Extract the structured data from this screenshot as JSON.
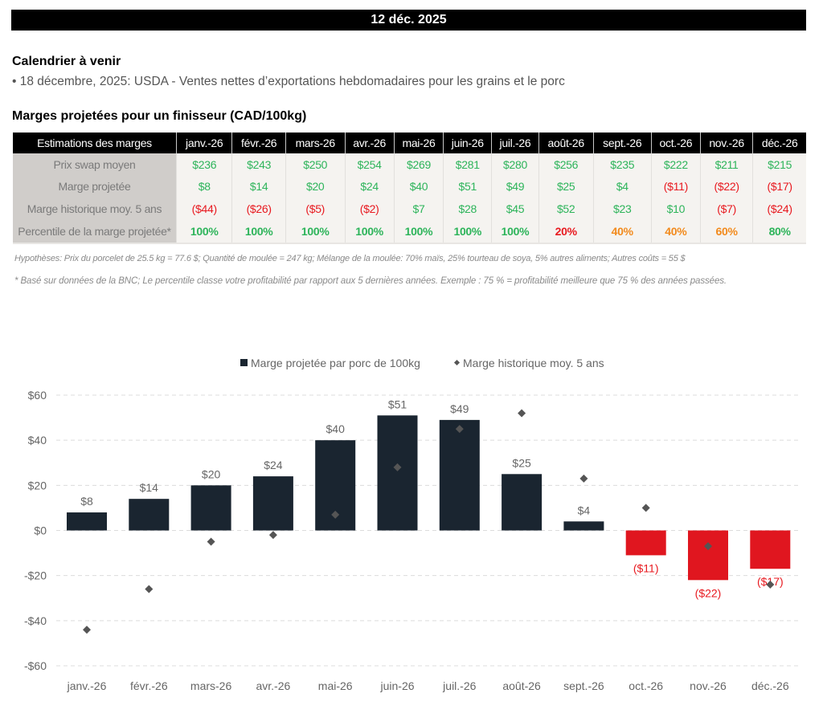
{
  "header": {
    "date": "12 déc. 2025"
  },
  "calendar": {
    "title": "Calendrier à venir",
    "items": [
      "• 18 décembre, 2025: USDA - Ventes nettes d’exportations hebdomadaires pour les grains et le porc"
    ]
  },
  "table": {
    "title": "Marges projetées pour un finisseur (CAD/100kg)",
    "corner_header": "Estimations des marges",
    "columns": [
      "janv.-26",
      "févr.-26",
      "mars-26",
      "avr.-26",
      "mai-26",
      "juin-26",
      "juil.-26",
      "août-26",
      "sept.-26",
      "oct.-26",
      "nov.-26",
      "déc.-26"
    ],
    "rows": [
      {
        "label": "Prix swap moyen",
        "cells": [
          {
            "text": "$236",
            "tone": "green"
          },
          {
            "text": "$243",
            "tone": "green"
          },
          {
            "text": "$250",
            "tone": "green"
          },
          {
            "text": "$254",
            "tone": "green"
          },
          {
            "text": "$269",
            "tone": "green"
          },
          {
            "text": "$281",
            "tone": "green"
          },
          {
            "text": "$280",
            "tone": "green"
          },
          {
            "text": "$256",
            "tone": "green"
          },
          {
            "text": "$235",
            "tone": "green"
          },
          {
            "text": "$222",
            "tone": "green"
          },
          {
            "text": "$211",
            "tone": "green"
          },
          {
            "text": "$215",
            "tone": "green"
          }
        ]
      },
      {
        "label": "Marge projetée",
        "cells": [
          {
            "text": "$8",
            "tone": "green"
          },
          {
            "text": "$14",
            "tone": "green"
          },
          {
            "text": "$20",
            "tone": "green"
          },
          {
            "text": "$24",
            "tone": "green"
          },
          {
            "text": "$40",
            "tone": "green"
          },
          {
            "text": "$51",
            "tone": "green"
          },
          {
            "text": "$49",
            "tone": "green"
          },
          {
            "text": "$25",
            "tone": "green"
          },
          {
            "text": "$4",
            "tone": "green"
          },
          {
            "text": "($11)",
            "tone": "red"
          },
          {
            "text": "($22)",
            "tone": "red"
          },
          {
            "text": "($17)",
            "tone": "red"
          }
        ]
      },
      {
        "label": "Marge historique moy. 5 ans",
        "cells": [
          {
            "text": "($44)",
            "tone": "red"
          },
          {
            "text": "($26)",
            "tone": "red"
          },
          {
            "text": "($5)",
            "tone": "red"
          },
          {
            "text": "($2)",
            "tone": "red"
          },
          {
            "text": "$7",
            "tone": "green"
          },
          {
            "text": "$28",
            "tone": "green"
          },
          {
            "text": "$45",
            "tone": "green"
          },
          {
            "text": "$52",
            "tone": "green"
          },
          {
            "text": "$23",
            "tone": "green"
          },
          {
            "text": "$10",
            "tone": "green"
          },
          {
            "text": "($7)",
            "tone": "red"
          },
          {
            "text": "($24)",
            "tone": "red"
          }
        ]
      },
      {
        "label": "Percentile de la marge projetée*",
        "cells": [
          {
            "text": "100%",
            "tone": "green"
          },
          {
            "text": "100%",
            "tone": "green"
          },
          {
            "text": "100%",
            "tone": "green"
          },
          {
            "text": "100%",
            "tone": "green"
          },
          {
            "text": "100%",
            "tone": "green"
          },
          {
            "text": "100%",
            "tone": "green"
          },
          {
            "text": "100%",
            "tone": "green"
          },
          {
            "text": "20%",
            "tone": "red"
          },
          {
            "text": "40%",
            "tone": "orange"
          },
          {
            "text": "40%",
            "tone": "orange"
          },
          {
            "text": "60%",
            "tone": "orange"
          },
          {
            "text": "80%",
            "tone": "green"
          }
        ]
      }
    ]
  },
  "notes": {
    "assumptions": "Hypothèses: Prix du porcelet de 25.5 kg = 77.6 $; Quantité de moulée = 247 kg; Mélange de la moulée: 70% maïs, 25% tourteau de soya, 5% autres aliments; Autres coûts = 55 $",
    "footnote": "* Basé sur données de la BNC; Le percentile classe votre profitabilité par rapport aux 5 dernières années. Exemple : 75 % = profitabilité meilleure que 75 % des années passées."
  },
  "colors": {
    "green": "#2db45a",
    "red": "#e8191f",
    "orange": "#f28a1c",
    "bar_positive": "#1a2530",
    "bar_negative": "#e0161f",
    "marker": "#555555"
  },
  "chart_data": {
    "type": "bar",
    "title": "",
    "xlabel": "",
    "ylabel": "",
    "categories": [
      "janv.-26",
      "févr.-26",
      "mars-26",
      "avr.-26",
      "mai-26",
      "juin-26",
      "juil.-26",
      "août-26",
      "sept.-26",
      "oct.-26",
      "nov.-26",
      "déc.-26"
    ],
    "series": [
      {
        "name": "Marge projetée par porc de 100kg",
        "kind": "bar",
        "values": [
          8,
          14,
          20,
          24,
          40,
          51,
          49,
          25,
          4,
          -11,
          -22,
          -17
        ],
        "labels": [
          "$8",
          "$14",
          "$20",
          "$24",
          "$40",
          "$51",
          "$49",
          "$25",
          "$4",
          "($11)",
          "($22)",
          "($17)"
        ]
      },
      {
        "name": "Marge historique moy. 5 ans",
        "kind": "marker-diamond",
        "values": [
          -44,
          -26,
          -5,
          -2,
          7,
          28,
          45,
          52,
          23,
          10,
          -7,
          -24
        ]
      }
    ],
    "ylim": [
      -60,
      60
    ],
    "yticks": [
      60,
      40,
      20,
      0,
      -20,
      -40,
      -60
    ],
    "ytick_labels": [
      "$60",
      "$40",
      "$20",
      "$0",
      "-$20",
      "-$40",
      "-$60"
    ],
    "grid": true,
    "legend_position": "top-center"
  }
}
